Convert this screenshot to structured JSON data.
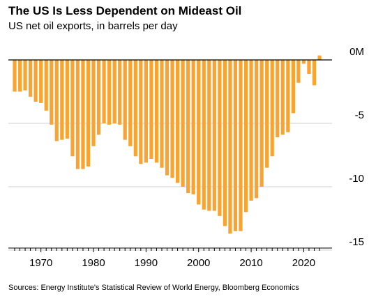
{
  "title": "The US Is Less Dependent on Mideast Oil",
  "subtitle": "US net oil exports, in barrels per day",
  "source": "Sources: Energy Institute's Statistical Review of World Energy, Bloomberg Economics",
  "chart_data": {
    "type": "bar",
    "bar_color": "#f9a330",
    "title": "The US Is Less Dependent on Mideast Oil",
    "subtitle": "US net oil exports, in barrels per day",
    "xlabel": "",
    "ylabel": "",
    "unit": "M",
    "grid": true,
    "ylim": [
      -15.8,
      0.5
    ],
    "y_ticks": [
      0,
      -5,
      -10,
      -15
    ],
    "y_tick_labels": [
      "0M",
      "-5",
      "-10",
      "-15"
    ],
    "x_ticks": [
      1970,
      1980,
      1990,
      2000,
      2010,
      2020
    ],
    "x_tick_labels": [
      "1970",
      "1980",
      "1990",
      "2000",
      "2010",
      "2020"
    ],
    "x": [
      1965,
      1966,
      1967,
      1968,
      1969,
      1970,
      1971,
      1972,
      1973,
      1974,
      1975,
      1976,
      1977,
      1978,
      1979,
      1980,
      1981,
      1982,
      1983,
      1984,
      1985,
      1986,
      1987,
      1988,
      1989,
      1990,
      1991,
      1992,
      1993,
      1994,
      1995,
      1996,
      1997,
      1998,
      1999,
      2000,
      2001,
      2002,
      2003,
      2004,
      2005,
      2006,
      2007,
      2008,
      2009,
      2010,
      2011,
      2012,
      2013,
      2014,
      2015,
      2016,
      2017,
      2018,
      2019,
      2020,
      2021,
      2022,
      2023
    ],
    "values": [
      -2.5,
      -2.5,
      -2.4,
      -2.9,
      -3.3,
      -3.4,
      -4.0,
      -5.1,
      -6.4,
      -6.3,
      -6.2,
      -7.6,
      -8.6,
      -8.6,
      -8.4,
      -6.8,
      -5.9,
      -5.0,
      -5.1,
      -5.0,
      -5.1,
      -6.3,
      -6.8,
      -7.6,
      -8.2,
      -8.1,
      -7.8,
      -8.1,
      -8.5,
      -9.1,
      -9.3,
      -9.7,
      -10.0,
      -10.5,
      -10.6,
      -11.4,
      -11.8,
      -11.9,
      -11.9,
      -12.3,
      -13.1,
      -13.7,
      -13.5,
      -13.5,
      -12.0,
      -11.1,
      -10.9,
      -10.0,
      -8.5,
      -7.6,
      -6.1,
      -5.9,
      -5.7,
      -4.2,
      -1.8,
      -0.3,
      -1.1,
      -2.0,
      0.35
    ]
  }
}
